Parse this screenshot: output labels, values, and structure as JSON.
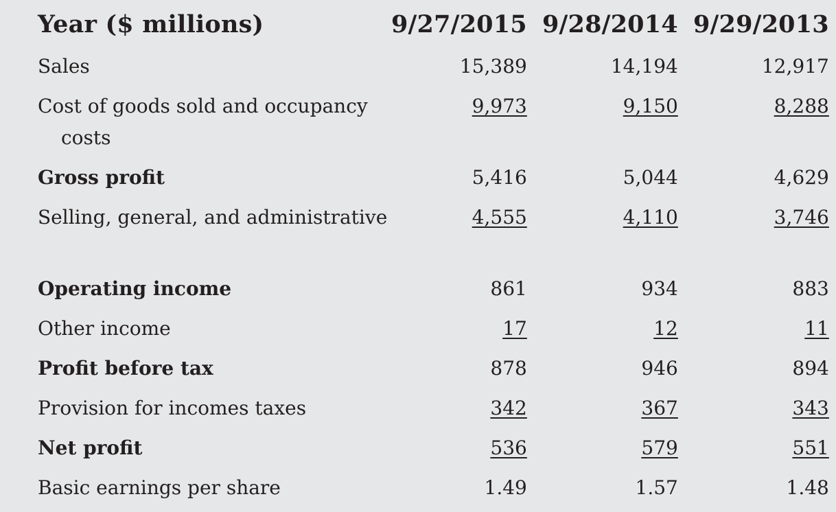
{
  "table": {
    "header": {
      "label": "Year ($ millions)",
      "years": [
        "9/27/2015",
        "9/28/2014",
        "9/29/2013"
      ]
    },
    "rows": [
      {
        "label": "Sales",
        "bold": false,
        "wrap": false,
        "underline": false,
        "values": [
          "15,389",
          "14,194",
          "12,917"
        ]
      },
      {
        "label": "Cost of goods sold and occupancy costs",
        "bold": false,
        "wrap": true,
        "underline": true,
        "values": [
          "9,973",
          "9,150",
          "8,288"
        ]
      },
      {
        "label": "Gross profit",
        "bold": true,
        "wrap": false,
        "underline": false,
        "values": [
          "5,416",
          "5,044",
          "4,629"
        ]
      },
      {
        "label": "Selling, general, and administrative",
        "bold": false,
        "wrap": true,
        "underline": true,
        "values": [
          "4,555",
          "4,110",
          "3,746"
        ]
      },
      {
        "label": "Operating income",
        "bold": true,
        "wrap": false,
        "underline": false,
        "values": [
          "861",
          "934",
          "883"
        ]
      },
      {
        "label": "Other income",
        "bold": false,
        "wrap": false,
        "underline": true,
        "values": [
          "17",
          "12",
          "11"
        ]
      },
      {
        "label": "Profit before tax",
        "bold": true,
        "wrap": false,
        "underline": false,
        "values": [
          "878",
          "946",
          "894"
        ]
      },
      {
        "label": "Provision for incomes taxes",
        "bold": false,
        "wrap": false,
        "underline": true,
        "values": [
          "342",
          "367",
          "343"
        ]
      },
      {
        "label": "Net profit",
        "bold": true,
        "wrap": false,
        "underline": true,
        "values": [
          "536",
          "579",
          "551"
        ]
      },
      {
        "label": "Basic earnings per share",
        "bold": false,
        "wrap": false,
        "underline": false,
        "values": [
          "1.49",
          "1.57",
          "1.48"
        ]
      }
    ]
  },
  "colors": {
    "background": "#e6e7e8",
    "text": "#231f20"
  }
}
